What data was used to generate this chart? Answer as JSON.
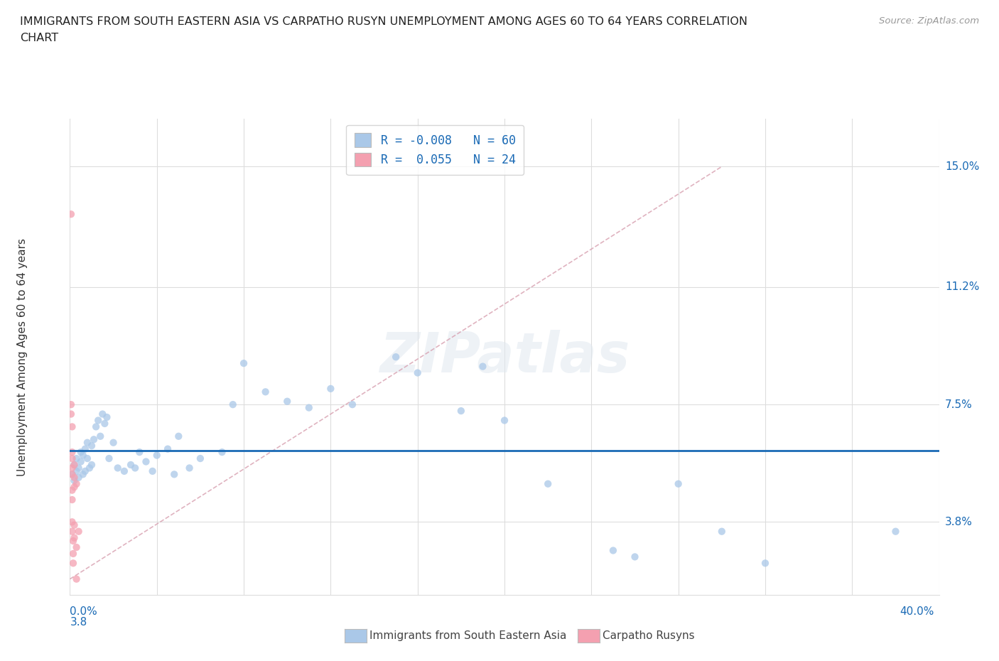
{
  "title_line1": "IMMIGRANTS FROM SOUTH EASTERN ASIA VS CARPATHO RUSYN UNEMPLOYMENT AMONG AGES 60 TO 64 YEARS CORRELATION",
  "title_line2": "CHART",
  "source": "Source: ZipAtlas.com",
  "ylabel": "Unemployment Among Ages 60 to 64 years",
  "yticks": [
    3.8,
    7.5,
    11.2,
    15.0
  ],
  "ytick_labels": [
    "3.8%",
    "7.5%",
    "11.2%",
    "15.0%"
  ],
  "xmin": 0.0,
  "xmax": 0.4,
  "ymin": 1.5,
  "ymax": 16.5,
  "R_blue": -0.008,
  "N_blue": 60,
  "R_pink": 0.055,
  "N_pink": 24,
  "blue_scatter_color": "#aac8e8",
  "pink_scatter_color": "#f4a0b0",
  "hline_color": "#1a6ab5",
  "trend_pink_color": "#d8a0b0",
  "trend_blue_color": "#a0b8d8",
  "legend_label_blue": "Immigrants from South Eastern Asia",
  "legend_label_pink": "Carpatho Rusyns",
  "blue_swatch_color": "#aac8e8",
  "pink_swatch_color": "#f4a0b0",
  "blue_points": [
    [
      0.001,
      5.3
    ],
    [
      0.002,
      5.1
    ],
    [
      0.002,
      5.6
    ],
    [
      0.003,
      5.4
    ],
    [
      0.003,
      5.8
    ],
    [
      0.004,
      5.2
    ],
    [
      0.004,
      5.5
    ],
    [
      0.005,
      5.7
    ],
    [
      0.005,
      6.0
    ],
    [
      0.006,
      5.3
    ],
    [
      0.006,
      5.9
    ],
    [
      0.007,
      6.1
    ],
    [
      0.007,
      5.4
    ],
    [
      0.008,
      6.3
    ],
    [
      0.008,
      5.8
    ],
    [
      0.009,
      5.5
    ],
    [
      0.01,
      5.6
    ],
    [
      0.01,
      6.2
    ],
    [
      0.011,
      6.4
    ],
    [
      0.012,
      6.8
    ],
    [
      0.013,
      7.0
    ],
    [
      0.014,
      6.5
    ],
    [
      0.015,
      7.2
    ],
    [
      0.016,
      6.9
    ],
    [
      0.017,
      7.1
    ],
    [
      0.018,
      5.8
    ],
    [
      0.02,
      6.3
    ],
    [
      0.022,
      5.5
    ],
    [
      0.025,
      5.4
    ],
    [
      0.028,
      5.6
    ],
    [
      0.03,
      5.5
    ],
    [
      0.032,
      6.0
    ],
    [
      0.035,
      5.7
    ],
    [
      0.038,
      5.4
    ],
    [
      0.04,
      5.9
    ],
    [
      0.045,
      6.1
    ],
    [
      0.048,
      5.3
    ],
    [
      0.05,
      6.5
    ],
    [
      0.055,
      5.5
    ],
    [
      0.06,
      5.8
    ],
    [
      0.07,
      6.0
    ],
    [
      0.075,
      7.5
    ],
    [
      0.08,
      8.8
    ],
    [
      0.09,
      7.9
    ],
    [
      0.1,
      7.6
    ],
    [
      0.11,
      7.4
    ],
    [
      0.12,
      8.0
    ],
    [
      0.13,
      7.5
    ],
    [
      0.15,
      9.0
    ],
    [
      0.16,
      8.5
    ],
    [
      0.18,
      7.3
    ],
    [
      0.19,
      8.7
    ],
    [
      0.2,
      7.0
    ],
    [
      0.22,
      5.0
    ],
    [
      0.25,
      2.9
    ],
    [
      0.26,
      2.7
    ],
    [
      0.28,
      5.0
    ],
    [
      0.3,
      3.5
    ],
    [
      0.32,
      2.5
    ],
    [
      0.38,
      3.5
    ]
  ],
  "pink_points": [
    [
      0.0005,
      13.5
    ],
    [
      0.0005,
      7.5
    ],
    [
      0.0005,
      7.2
    ],
    [
      0.001,
      6.8
    ],
    [
      0.001,
      6.0
    ],
    [
      0.001,
      5.8
    ],
    [
      0.001,
      5.5
    ],
    [
      0.001,
      5.3
    ],
    [
      0.001,
      4.8
    ],
    [
      0.001,
      4.5
    ],
    [
      0.001,
      3.8
    ],
    [
      0.001,
      3.5
    ],
    [
      0.0015,
      3.2
    ],
    [
      0.0015,
      2.8
    ],
    [
      0.0015,
      2.5
    ],
    [
      0.002,
      5.6
    ],
    [
      0.002,
      5.2
    ],
    [
      0.002,
      4.9
    ],
    [
      0.002,
      3.7
    ],
    [
      0.002,
      3.3
    ],
    [
      0.003,
      5.0
    ],
    [
      0.003,
      3.0
    ],
    [
      0.004,
      3.5
    ],
    [
      0.003,
      2.0
    ]
  ],
  "watermark": "ZIPatlas",
  "background_color": "#ffffff",
  "grid_color": "#dddddd"
}
